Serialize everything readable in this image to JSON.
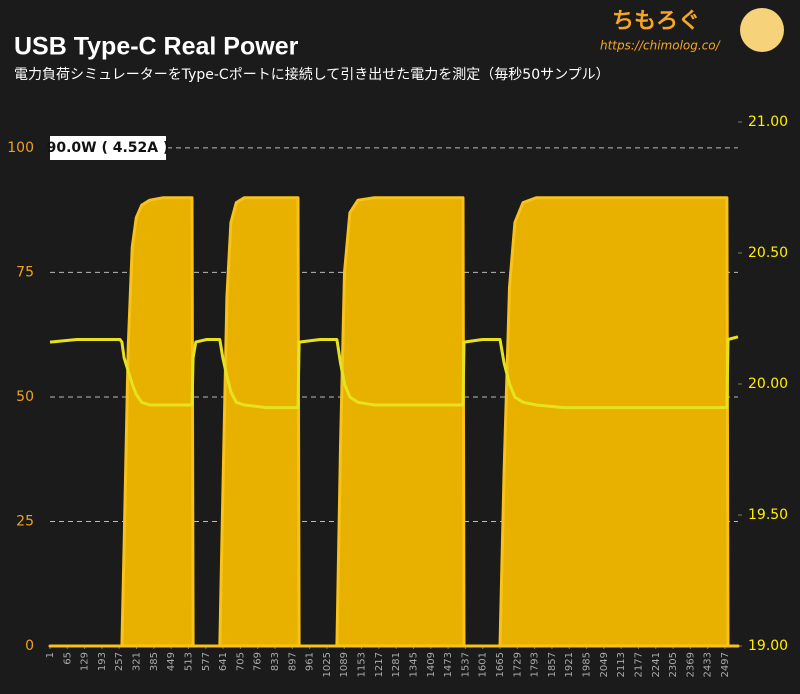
{
  "brand": {
    "name": "ちもろぐ",
    "url": "https://chimolog.co/"
  },
  "chart_data": {
    "type": "area-line",
    "title": "USB Type-C Real Power",
    "subtitle": "電力負荷シミュレーターをType-Cポートに接続して引き出せた電力を測定（毎秒50サンプル）",
    "annotation": "90.0W ( 4.52A )",
    "x": [
      1,
      100,
      200,
      260,
      267,
      275,
      290,
      305,
      320,
      340,
      370,
      420,
      480,
      526,
      530,
      540,
      580,
      629,
      640,
      655,
      670,
      690,
      720,
      800,
      918,
      922,
      1000,
      1062,
      1075,
      1090,
      1110,
      1140,
      1200,
      1300,
      1400,
      1528,
      1532,
      1600,
      1665,
      1680,
      1700,
      1720,
      1750,
      1800,
      1900,
      2000,
      2100,
      2200,
      2300,
      2400,
      2504,
      2508,
      2545
    ],
    "series": [
      {
        "color": "#e8b100",
        "values": [
          0,
          0,
          0,
          0,
          0,
          20,
          60,
          80,
          86,
          88.5,
          89.5,
          90,
          90,
          90,
          0,
          0,
          0,
          0,
          30,
          70,
          85,
          89,
          90,
          90,
          90,
          0,
          0,
          0,
          40,
          75,
          87,
          89.5,
          90,
          90,
          90,
          90,
          0,
          0,
          0,
          35,
          72,
          85,
          89,
          90,
          90,
          90,
          90,
          90,
          90,
          90,
          90,
          0,
          0
        ]
      },
      {
        "color": "#e6e21e",
        "axis": "y2",
        "values": [
          20.16,
          20.17,
          20.17,
          20.17,
          20.16,
          20.1,
          20.05,
          20.0,
          19.96,
          19.93,
          19.92,
          19.92,
          19.92,
          19.92,
          20.1,
          20.16,
          20.17,
          20.17,
          20.1,
          20.03,
          19.97,
          19.93,
          19.92,
          19.91,
          19.91,
          20.16,
          20.17,
          20.17,
          20.08,
          20.0,
          19.95,
          19.93,
          19.92,
          19.92,
          19.92,
          19.92,
          20.16,
          20.17,
          20.17,
          20.08,
          20.0,
          19.95,
          19.93,
          19.92,
          19.91,
          19.91,
          19.91,
          19.91,
          19.91,
          19.91,
          19.91,
          20.17,
          20.18
        ]
      }
    ],
    "xlim": [
      1,
      2545
    ],
    "xticks": [
      1,
      65,
      129,
      193,
      257,
      321,
      385,
      449,
      513,
      577,
      641,
      705,
      769,
      833,
      897,
      961,
      1025,
      1089,
      1153,
      1217,
      1281,
      1345,
      1409,
      1473,
      1537,
      1601,
      1665,
      1729,
      1793,
      1857,
      1921,
      1985,
      2049,
      2113,
      2177,
      2241,
      2305,
      2369,
      2433,
      2497
    ],
    "ylim": [
      0,
      105.2
    ],
    "yticks": [
      0,
      25,
      50,
      75,
      100
    ],
    "y2lim": [
      19,
      21
    ],
    "y2ticks": [
      {
        "value": 19,
        "label": "19.00"
      },
      {
        "value": 19.5,
        "label": "19.50"
      },
      {
        "value": 20,
        "label": "20.00"
      },
      {
        "value": 20.5,
        "label": "20.50"
      },
      {
        "value": 21,
        "label": "21.00"
      }
    ],
    "grid": true
  }
}
